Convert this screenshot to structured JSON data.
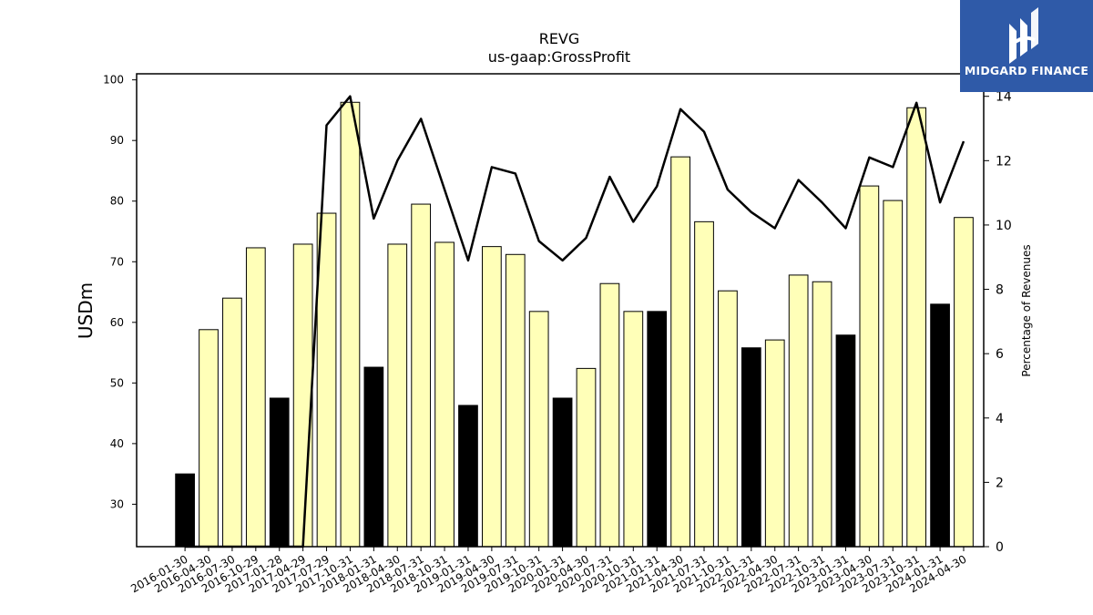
{
  "chart_data": {
    "type": "bar",
    "title": "REVG",
    "subtitle": "us-gaap:GrossProfit",
    "ylabel": "USDm",
    "y2label": "Percentage of Revenues",
    "ylim": [
      23,
      101
    ],
    "y2lim": [
      0,
      14.7
    ],
    "yticks": [
      30,
      40,
      50,
      60,
      70,
      80,
      90,
      100
    ],
    "y2ticks": [
      0,
      2,
      4,
      6,
      8,
      10,
      12,
      14
    ],
    "categories": [
      "2016-01-30",
      "2016-04-30",
      "2016-07-30",
      "2016-10-29",
      "2017-01-28",
      "2017-04-29",
      "2017-07-29",
      "2017-10-31",
      "2018-01-31",
      "2018-04-30",
      "2018-07-31",
      "2018-10-31",
      "2019-01-31",
      "2019-04-30",
      "2019-07-31",
      "2019-10-31",
      "2020-01-31",
      "2020-04-30",
      "2020-07-31",
      "2020-10-31",
      "2021-01-31",
      "2021-04-30",
      "2021-07-31",
      "2021-10-31",
      "2022-01-31",
      "2022-04-30",
      "2022-07-31",
      "2022-10-31",
      "2023-01-31",
      "2023-04-30",
      "2023-07-31",
      "2023-10-31",
      "2024-01-31",
      "2024-04-30"
    ],
    "series": [
      {
        "type": "bar",
        "axis": "left",
        "values": [
          35.0,
          58.8,
          64.0,
          72.3,
          47.5,
          72.9,
          78.0,
          96.3,
          52.6,
          72.9,
          79.5,
          73.2,
          46.3,
          72.5,
          71.2,
          61.8,
          47.5,
          52.4,
          66.4,
          61.8,
          61.8,
          87.3,
          76.6,
          65.2,
          55.8,
          57.1,
          67.8,
          66.7,
          57.9,
          82.5,
          80.1,
          95.4,
          63.0,
          77.3
        ],
        "highlight": [
          true,
          false,
          false,
          false,
          true,
          false,
          false,
          false,
          true,
          false,
          false,
          false,
          true,
          false,
          false,
          false,
          true,
          false,
          false,
          false,
          true,
          false,
          false,
          false,
          true,
          false,
          false,
          false,
          true,
          false,
          false,
          false,
          true,
          false
        ]
      },
      {
        "type": "line",
        "axis": "right",
        "values": [
          0,
          0,
          0,
          0,
          0,
          0,
          13.1,
          14.0,
          10.2,
          12.0,
          13.3,
          11.1,
          8.9,
          11.8,
          11.6,
          9.5,
          8.9,
          9.6,
          11.5,
          10.1,
          11.2,
          13.6,
          12.9,
          11.1,
          10.4,
          9.9,
          11.4,
          10.7,
          9.9,
          12.1,
          11.8,
          13.8,
          10.7,
          12.6
        ]
      }
    ],
    "colors": {
      "bar": "#ffffb8",
      "bar_highlight": "#000000",
      "line": "#000000"
    }
  },
  "logo": {
    "text": "MIDGARD FINANCE",
    "bg": "#2f5aa8"
  }
}
